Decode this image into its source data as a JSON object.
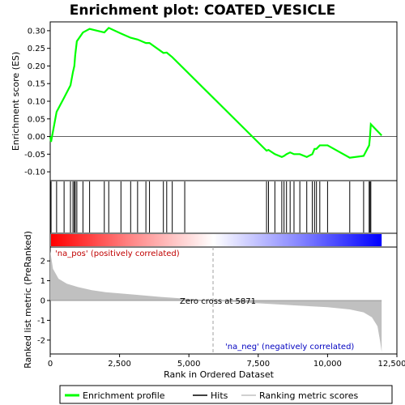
{
  "chart_data": {
    "type": "line",
    "title": "Enrichment plot: COATED_VESICLE",
    "ylabel_top": "Enrichment score (ES)",
    "ylabel_bottom": "Ranked list metric (PreRanked)",
    "xlabel": "Rank in Ordered Dataset",
    "xlim": [
      0,
      12500
    ],
    "x_ticks": [
      0,
      2500,
      5000,
      7500,
      10000,
      12500
    ],
    "x_tick_labels": [
      "0",
      "2,500",
      "5,000",
      "7,500",
      "10,000",
      "12,500"
    ],
    "es_ylim": [
      -0.125,
      0.325
    ],
    "es_ticks": [
      -0.1,
      -0.05,
      0.0,
      0.05,
      0.1,
      0.15,
      0.2,
      0.25,
      0.3
    ],
    "es_tick_labels": [
      "-0.10",
      "-0.05",
      "0.00",
      "0.05",
      "0.10",
      "0.15",
      "0.20",
      "0.25",
      "0.30"
    ],
    "metric_ylim": [
      -2.7,
      2.7
    ],
    "metric_ticks": [
      -2,
      -1,
      0,
      1,
      2
    ],
    "metric_tick_labels": [
      "-2",
      "-1",
      "0",
      "1",
      "2"
    ],
    "n_genes": 11950,
    "zero_cross": 5871,
    "zero_cross_label": "Zero cross at 5871",
    "pos_label": "'na_pos' (positively correlated)",
    "neg_label": "'na_neg' (negatively correlated)",
    "hits": [
      30,
      230,
      500,
      730,
      820,
      870,
      900,
      960,
      1180,
      1420,
      1950,
      2110,
      2550,
      2900,
      3150,
      3450,
      3580,
      4080,
      4200,
      4400,
      4850,
      7800,
      7870,
      8100,
      8350,
      8430,
      8520,
      8650,
      8790,
      9000,
      9250,
      9450,
      9530,
      9600,
      9720,
      10000,
      10800,
      11300,
      11500,
      11530,
      11560
    ],
    "enrichment_profile": {
      "x": [
        0,
        30,
        230,
        500,
        730,
        820,
        870,
        900,
        960,
        1180,
        1420,
        1950,
        2110,
        2550,
        2900,
        3150,
        3450,
        3580,
        4080,
        4200,
        4400,
        4850,
        7800,
        7870,
        8100,
        8350,
        8430,
        8520,
        8650,
        8790,
        9000,
        9250,
        9450,
        9530,
        9600,
        9720,
        10000,
        10800,
        11300,
        11500,
        11530,
        11560,
        11950
      ],
      "y": [
        0.0,
        -0.015,
        0.07,
        0.11,
        0.145,
        0.183,
        0.2,
        0.23,
        0.27,
        0.295,
        0.305,
        0.295,
        0.308,
        0.292,
        0.28,
        0.275,
        0.265,
        0.265,
        0.237,
        0.238,
        0.225,
        0.19,
        -0.04,
        -0.038,
        -0.05,
        -0.058,
        -0.055,
        -0.05,
        -0.045,
        -0.05,
        -0.05,
        -0.058,
        -0.05,
        -0.035,
        -0.035,
        -0.025,
        -0.025,
        -0.06,
        -0.055,
        -0.025,
        0.0,
        0.035,
        0.003
      ]
    },
    "ranking_metric": {
      "x": [
        0,
        100,
        300,
        600,
        1000,
        1500,
        2000,
        3000,
        4000,
        5000,
        5871,
        7000,
        8000,
        9000,
        10000,
        10800,
        11300,
        11600,
        11800,
        11900,
        11950
      ],
      "y": [
        2.5,
        1.6,
        1.1,
        0.85,
        0.68,
        0.52,
        0.42,
        0.3,
        0.18,
        0.08,
        0.0,
        -0.1,
        -0.18,
        -0.26,
        -0.34,
        -0.45,
        -0.6,
        -0.85,
        -1.3,
        -2.1,
        -2.6
      ]
    },
    "colors": {
      "profile": "#00ff00",
      "hits": "#000000",
      "metric_fill": "#c0c0c0",
      "zero_line": "#a0a0a0",
      "bar_pos": "#ff0000",
      "bar_neg": "#0000ff"
    },
    "legend": {
      "placement": "bottom",
      "items": [
        {
          "label": "Enrichment profile",
          "color": "#00ff00",
          "kind": "line"
        },
        {
          "label": "Hits",
          "color": "#000000",
          "kind": "line"
        },
        {
          "label": "Ranking metric scores",
          "color": "#c0c0c0",
          "kind": "line"
        }
      ]
    }
  }
}
